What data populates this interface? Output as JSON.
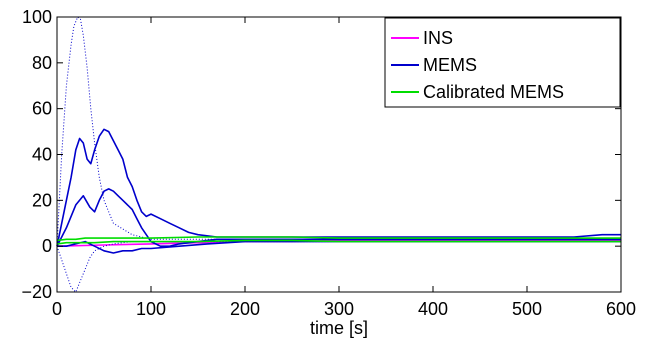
{
  "chart_data": {
    "type": "line",
    "title": "",
    "xlabel": "time [s]",
    "ylabel": "",
    "xlim": [
      0,
      600
    ],
    "ylim": [
      -20,
      100
    ],
    "xticks": [
      0,
      100,
      200,
      300,
      400,
      500,
      600
    ],
    "yticks": [
      -20,
      0,
      20,
      40,
      60,
      80,
      100
    ],
    "xtick_labels": [
      "0",
      "100",
      "200",
      "300",
      "400",
      "500",
      "600"
    ],
    "ytick_labels": [
      "−20",
      "0",
      "20",
      "40",
      "60",
      "80",
      "100"
    ],
    "grid": false,
    "legend_position": "top-right",
    "series": [
      {
        "name": "INS",
        "color": "#ff00ff",
        "x": [
          0,
          50,
          100,
          150,
          200,
          250,
          300,
          350,
          400,
          450,
          500,
          550,
          600
        ],
        "y": [
          0,
          0.5,
          1,
          1.5,
          2,
          2,
          2.5,
          2.5,
          2.5,
          2.5,
          2.5,
          2.5,
          2.5
        ]
      },
      {
        "name": "MEMS",
        "color": "#0000cc",
        "style": "solid",
        "x": [
          0,
          5,
          10,
          15,
          20,
          24,
          28,
          32,
          36,
          40,
          45,
          50,
          55,
          60,
          65,
          70,
          75,
          80,
          85,
          90,
          95,
          100,
          110,
          120,
          130,
          140,
          150,
          170,
          200,
          230,
          260,
          300,
          350,
          400,
          450,
          500,
          550,
          580,
          600
        ],
        "y": [
          0,
          10,
          20,
          30,
          42,
          47,
          45,
          38,
          36,
          42,
          48,
          51,
          50,
          46,
          42,
          38,
          30,
          26,
          20,
          15,
          13,
          14,
          12,
          10,
          8,
          6,
          5,
          4,
          4,
          4,
          4,
          4,
          4,
          4,
          4,
          4,
          4,
          5,
          5
        ]
      },
      {
        "name": "",
        "color": "#0000cc",
        "style": "solid",
        "x": [
          0,
          10,
          20,
          28,
          35,
          40,
          45,
          50,
          55,
          60,
          65,
          70,
          75,
          80,
          85,
          90,
          95,
          100,
          110,
          120,
          130,
          150,
          170,
          200,
          230,
          260,
          300,
          350,
          400,
          450,
          500,
          550,
          600
        ],
        "y": [
          0,
          8,
          18,
          22,
          17,
          15,
          20,
          24,
          25,
          24,
          22,
          20,
          18,
          16,
          12,
          8,
          5,
          2,
          0,
          0,
          1,
          2,
          3,
          3,
          3,
          3,
          3,
          3,
          3,
          3,
          3,
          3,
          3
        ]
      },
      {
        "name": "",
        "color": "#0000cc",
        "style": "solid",
        "x": [
          0,
          10,
          20,
          30,
          40,
          50,
          60,
          70,
          80,
          90,
          100,
          130,
          160,
          200,
          250,
          300,
          350,
          400,
          450,
          500,
          550,
          600
        ],
        "y": [
          0,
          0,
          1,
          2,
          0,
          -2,
          -3,
          -2,
          -2,
          -1,
          -1,
          0,
          1,
          2,
          2,
          2,
          2,
          2,
          2,
          2,
          2,
          2
        ]
      },
      {
        "name": "",
        "color": "#0000cc",
        "style": "dotted",
        "x": [
          0,
          5,
          10,
          15,
          18,
          22,
          25,
          28,
          32,
          36,
          40,
          45,
          50,
          60,
          80,
          100,
          150,
          200,
          300,
          400,
          500,
          600
        ],
        "y": [
          0,
          40,
          70,
          88,
          96,
          100,
          99,
          92,
          78,
          60,
          45,
          30,
          20,
          10,
          5,
          3,
          3,
          3,
          3,
          3,
          3,
          3
        ]
      },
      {
        "name": "",
        "color": "#0000cc",
        "style": "dotted",
        "x": [
          0,
          5,
          10,
          15,
          20,
          25,
          30,
          35,
          40,
          50,
          60,
          80,
          100,
          150,
          200,
          300,
          400,
          500,
          600
        ],
        "y": [
          0,
          -6,
          -12,
          -18,
          -20,
          -15,
          -10,
          -5,
          -2,
          0,
          1,
          2,
          2,
          2,
          2,
          2,
          2,
          2,
          2
        ]
      },
      {
        "name": "Calibrated MEMS",
        "color": "#00dd00",
        "x": [
          0,
          10,
          20,
          30,
          50,
          70,
          100,
          150,
          200,
          250,
          300,
          350,
          400,
          450,
          500,
          550,
          600
        ],
        "y": [
          2.5,
          3,
          3,
          3.5,
          3.5,
          3.5,
          3.5,
          4,
          4,
          4,
          3.5,
          3.5,
          3.5,
          3.5,
          3.5,
          3.5,
          3.5
        ]
      },
      {
        "name": "",
        "color": "#00dd00",
        "x": [
          0,
          10,
          20,
          40,
          60,
          100,
          150,
          200,
          250,
          300,
          350,
          400,
          450,
          500,
          550,
          600
        ],
        "y": [
          1,
          1.5,
          1.5,
          1.5,
          2,
          2,
          2,
          2.5,
          2.5,
          2,
          2,
          2,
          2,
          2,
          2,
          2
        ]
      }
    ]
  }
}
